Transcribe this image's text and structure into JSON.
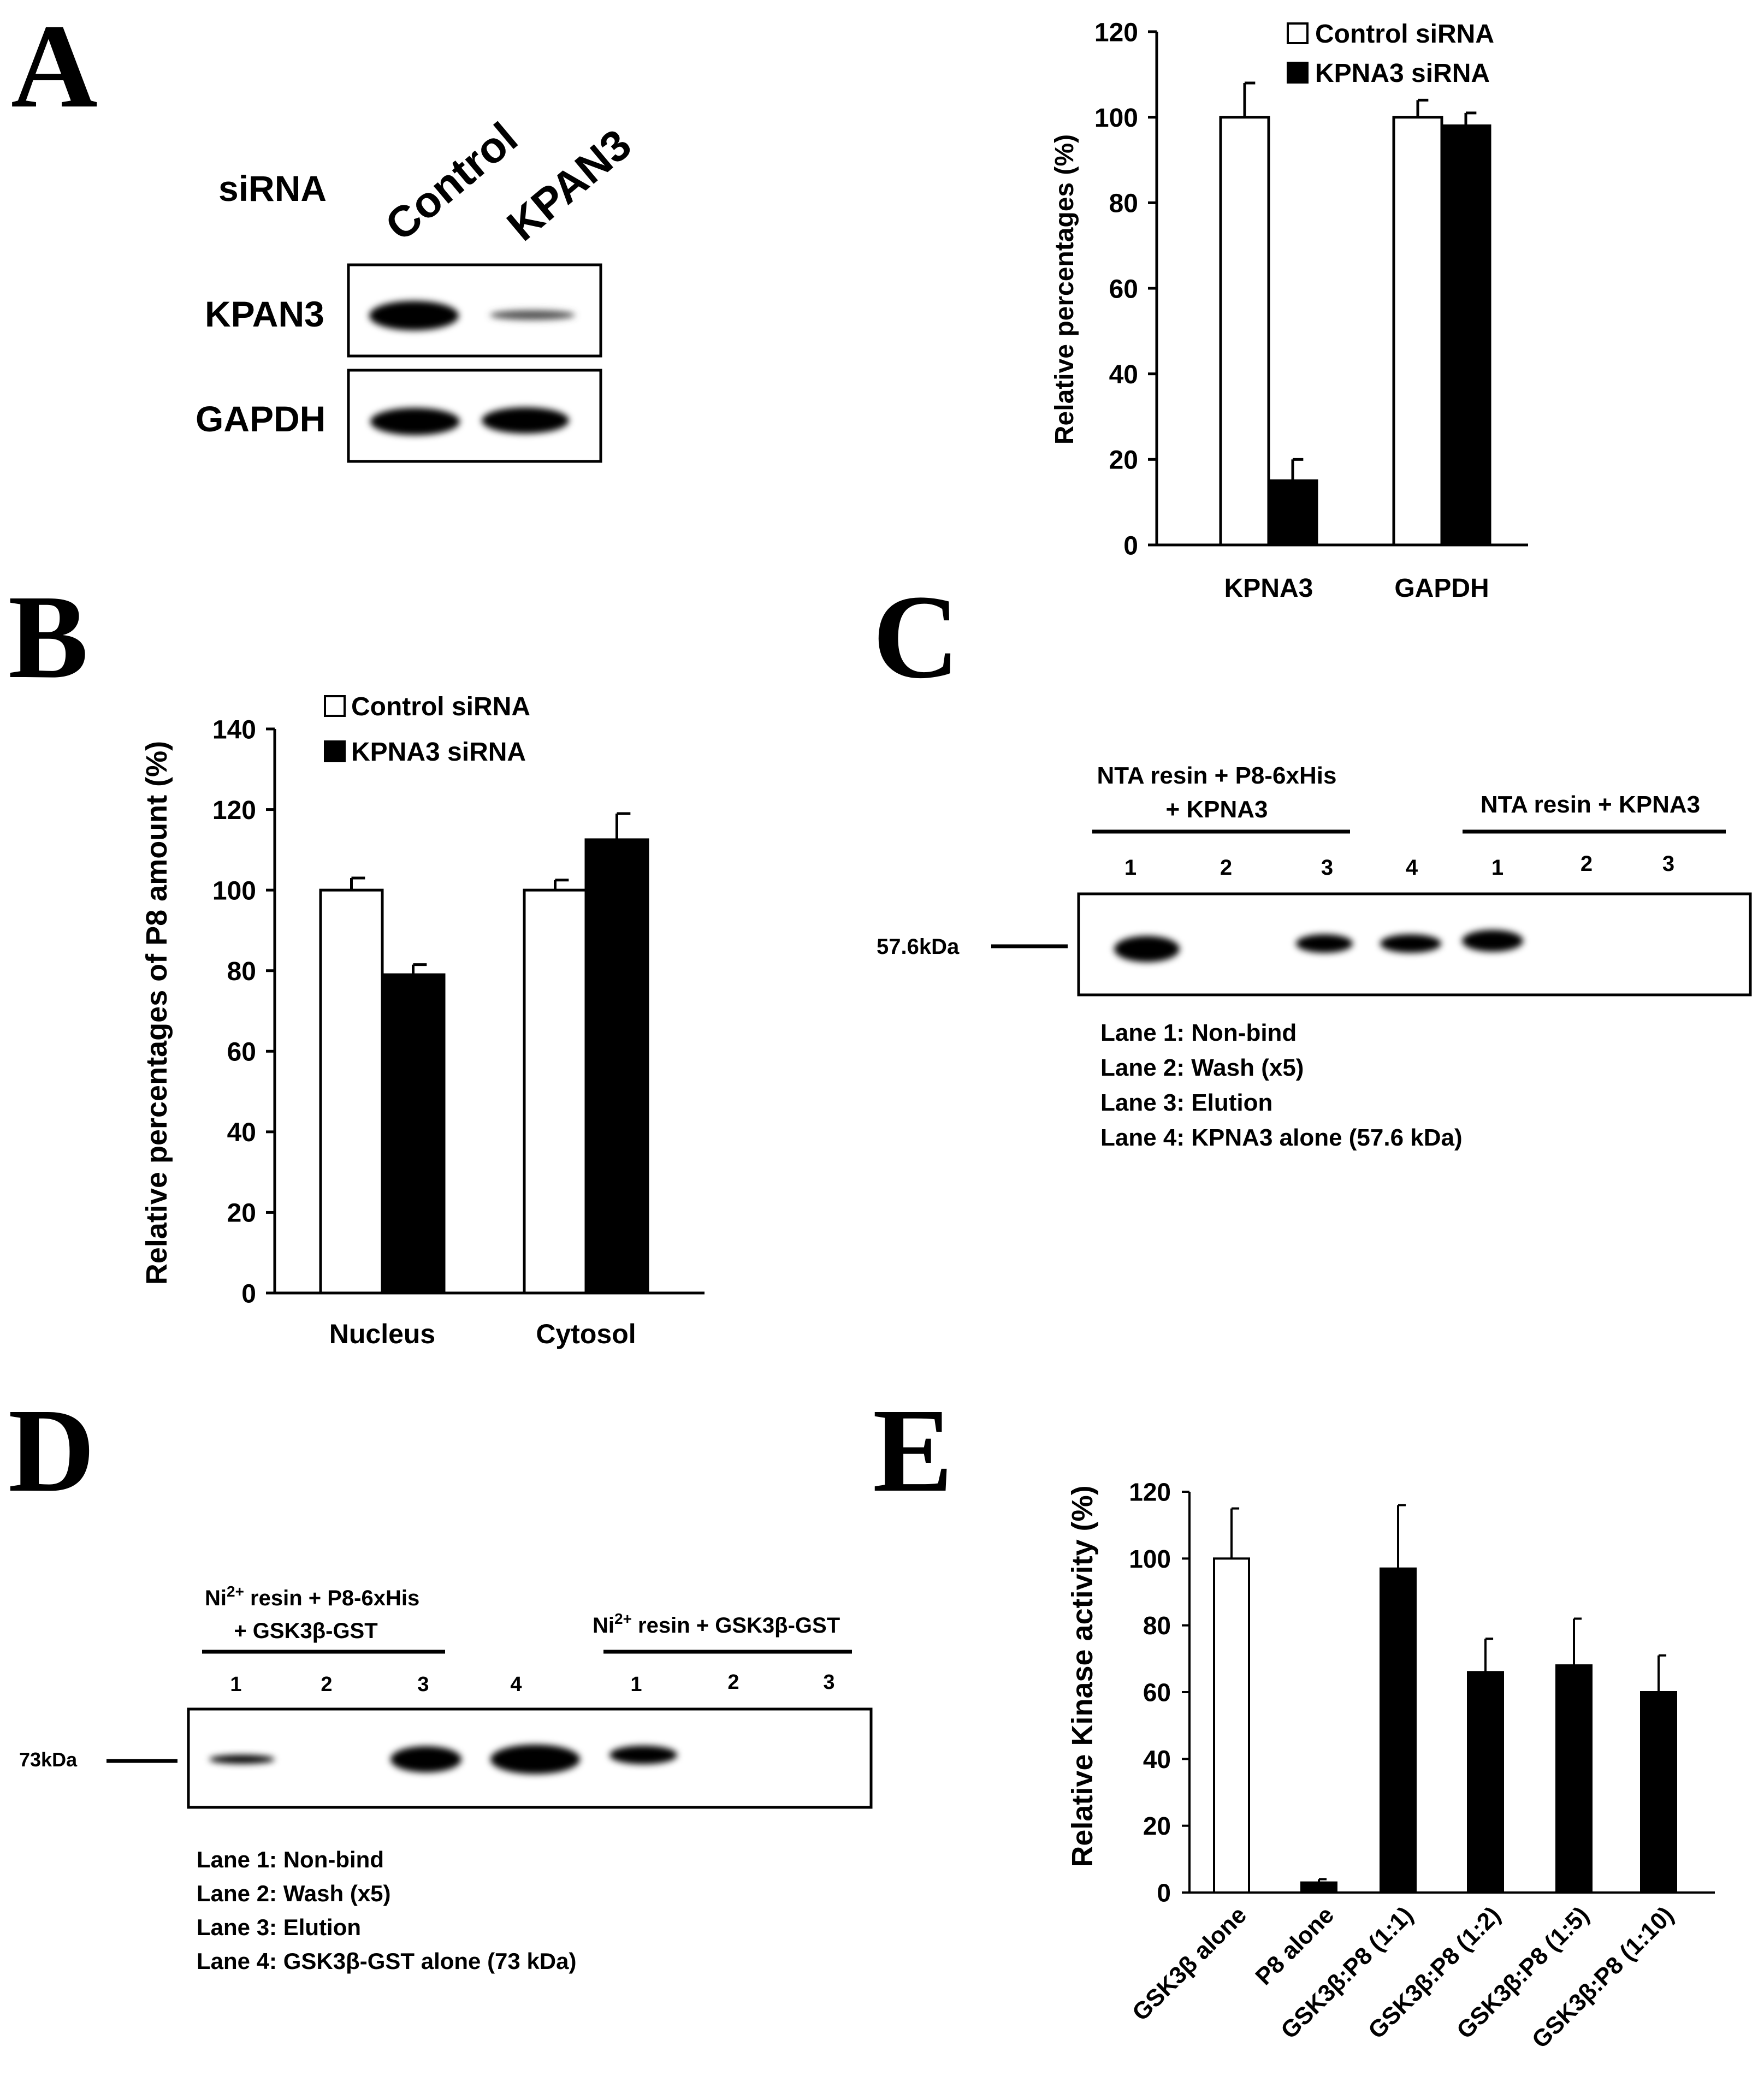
{
  "panels": {
    "A": {
      "letter": "A",
      "blot": {
        "row_header": "siRNA",
        "lanes": [
          "Control",
          "KPAN3"
        ],
        "rows": [
          "KPAN3",
          "GAPDH"
        ]
      }
    },
    "B": {
      "letter": "B"
    },
    "C": {
      "letter": "C",
      "group1_label_line1": "NTA resin + P8-6xHis",
      "group1_label_line2": "+ KPNA3",
      "group2_label": "NTA resin + KPNA3",
      "lane_numbers": [
        "1",
        "2",
        "3",
        "4",
        "1",
        "2",
        "3"
      ],
      "marker": "57.6kDa",
      "legend": [
        "Lane 1: Non-bind",
        "Lane 2: Wash (x5)",
        "Lane 3: Elution",
        "Lane 4: KPNA3 alone (57.6 kDa)"
      ]
    },
    "D": {
      "letter": "D",
      "group1_ion": "Ni",
      "group1_sup": "2+",
      "group1_rest": " resin + P8-6xHis",
      "group1_line2": "+ GSK3β-GST",
      "group2_ion": "Ni",
      "group2_sup": "2+",
      "group2_rest": " resin + GSK3β-GST",
      "lane_numbers": [
        "1",
        "2",
        "3",
        "4",
        "1",
        "2",
        "3"
      ],
      "marker": "73kDa",
      "legend": [
        "Lane 1: Non-bind",
        "Lane 2: Wash (x5)",
        "Lane 3: Elution",
        "Lane 4: GSK3β-GST alone (73 kDa)"
      ]
    },
    "E": {
      "letter": "E"
    }
  },
  "colors": {
    "control": "#ffffff",
    "treated": "#000000",
    "outline": "#000000"
  },
  "chart_data": [
    {
      "id": "A",
      "type": "bar",
      "title": "",
      "xlabel": "",
      "ylabel": "Relative percentages (%)",
      "categories": [
        "KPNA3",
        "GAPDH"
      ],
      "series": [
        {
          "name": "Control siRNA",
          "values": [
            100,
            100
          ],
          "errors": [
            8,
            4
          ]
        },
        {
          "name": "KPNA3 siRNA",
          "values": [
            15,
            98
          ],
          "errors": [
            5,
            3
          ]
        }
      ],
      "ylim": [
        0,
        120
      ],
      "yticks": [
        0,
        20,
        40,
        60,
        80,
        100,
        120
      ],
      "legend": "top-right",
      "grid": false
    },
    {
      "id": "B",
      "type": "bar",
      "title": "",
      "xlabel": "",
      "ylabel": "Relative percentages of P8 amount (%)",
      "categories": [
        "Nucleus",
        "Cytosol"
      ],
      "series": [
        {
          "name": "Control siRNA",
          "values": [
            100,
            100
          ],
          "errors": [
            3,
            2.5
          ]
        },
        {
          "name": "KPNA3 siRNA",
          "values": [
            79,
            112.5
          ],
          "errors": [
            2.5,
            6.5
          ]
        }
      ],
      "ylim": [
        0,
        140
      ],
      "yticks": [
        0,
        20,
        40,
        60,
        80,
        100,
        120,
        140
      ],
      "legend": "top-left",
      "grid": false
    },
    {
      "id": "E",
      "type": "bar",
      "title": "",
      "xlabel": "",
      "ylabel": "Relative Kinase activity (%)",
      "categories": [
        "GSK3β alone",
        "P8 alone",
        "GSK3β:P8 (1:1)",
        "GSK3β:P8 (1:2)",
        "GSK3β:P8 (1:5)",
        "GSK3β:P8 (1:10)"
      ],
      "values": [
        100,
        3,
        97,
        66,
        68,
        60
      ],
      "errors": [
        15,
        1,
        19,
        10,
        14,
        11
      ],
      "fills": [
        "white",
        "black",
        "black",
        "black",
        "black",
        "black"
      ],
      "ylim": [
        0,
        120
      ],
      "yticks": [
        0,
        20,
        40,
        60,
        80,
        100,
        120
      ],
      "legend": "none",
      "grid": false
    }
  ]
}
